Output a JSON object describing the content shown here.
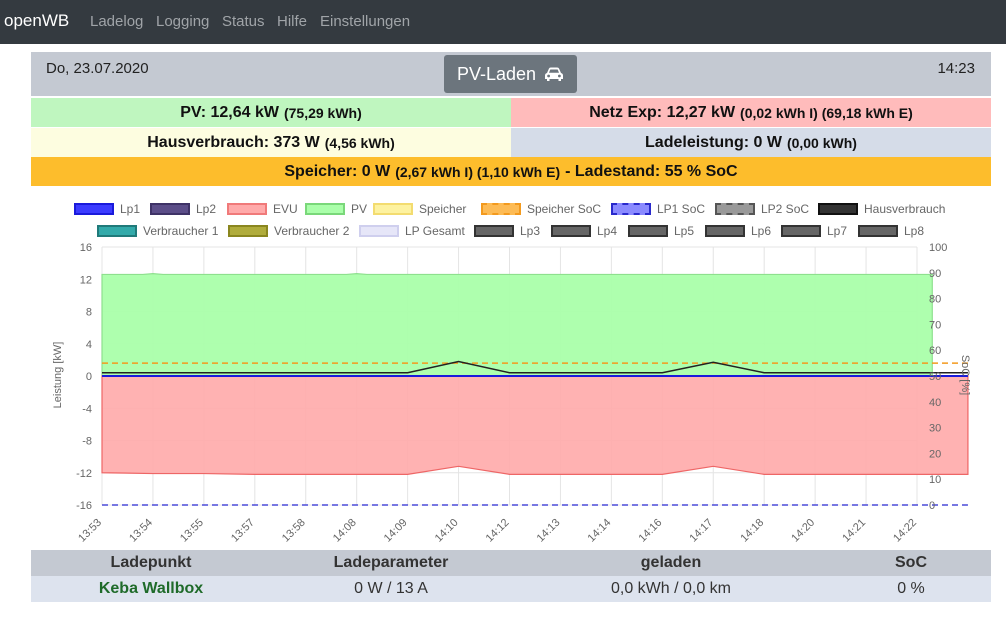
{
  "nav": {
    "brand": "openWB",
    "items": [
      "Ladelog",
      "Logging",
      "Status",
      "Hilfe",
      "Einstellungen"
    ]
  },
  "header": {
    "date": "Do, 23.07.2020",
    "mode_label": "PV-Laden",
    "mode_icon": "car-icon",
    "time": "14:23"
  },
  "summary": {
    "pv_main": "PV: 12,64 kW",
    "pv_detail": "(75,29 kWh)",
    "netz_main": "Netz Exp: 12,27 kW",
    "netz_detail": "(0,02 kWh I) (69,18 kWh E)",
    "haus_main": "Hausverbrauch: 373 W",
    "haus_detail": "(4,56 kWh)",
    "lade_main": "Ladeleistung: 0 W",
    "lade_detail": "(0,00 kWh)",
    "speicher_main": "Speicher: 0 W",
    "speicher_detail": "(2,67 kWh I) (1,10 kWh E)",
    "speicher_tail": "- Ladestand: 55 % SoC"
  },
  "colors": {
    "navbar": "#343a40",
    "header": "#c4c9d2",
    "pv": "#bff6bf",
    "netz": "#ffbbbb",
    "haus": "#fdfde0",
    "lade": "#d5dce8",
    "speicher": "#fdbd2c",
    "ladepunkt_name": "#1f6b2a"
  },
  "chart_data": {
    "type": "area",
    "legend": [
      {
        "name": "Lp1",
        "color": "#3b3bff",
        "border": "#1a1adb",
        "dashed": false
      },
      {
        "name": "Lp2",
        "color": "#5b4d88",
        "border": "#3e3266",
        "dashed": false
      },
      {
        "name": "EVU",
        "color": "#ffaaaa",
        "border": "#f07a7a",
        "dashed": false
      },
      {
        "name": "PV",
        "color": "#aaffaa",
        "border": "#7ad87a",
        "dashed": false
      },
      {
        "name": "Speicher",
        "color": "#fdf2a0",
        "border": "#f3dc70",
        "dashed": false
      },
      {
        "name": "Speicher SoC",
        "color": "#fdbb55",
        "border": "#f39a1e",
        "dashed": true
      },
      {
        "name": "LP1 SoC",
        "color": "#8a8aff",
        "border": "#2a2acc",
        "dashed": true
      },
      {
        "name": "LP2 SoC",
        "color": "#999999",
        "border": "#555555",
        "dashed": true
      },
      {
        "name": "Hausverbrauch",
        "color": "#333333",
        "border": "#111111",
        "dashed": false
      },
      {
        "name": "Verbraucher 1",
        "color": "#33aaaa",
        "border": "#207a7a",
        "dashed": false
      },
      {
        "name": "Verbraucher 2",
        "color": "#b0ac3c",
        "border": "#8a861f",
        "dashed": false
      },
      {
        "name": "LP Gesamt",
        "color": "#e6e6f8",
        "border": "#cfcfee",
        "dashed": false
      },
      {
        "name": "Lp3",
        "color": "#666666",
        "border": "#333333",
        "dashed": false
      },
      {
        "name": "Lp4",
        "color": "#666666",
        "border": "#333333",
        "dashed": false
      },
      {
        "name": "Lp5",
        "color": "#666666",
        "border": "#333333",
        "dashed": false
      },
      {
        "name": "Lp6",
        "color": "#666666",
        "border": "#333333",
        "dashed": false
      },
      {
        "name": "Lp7",
        "color": "#666666",
        "border": "#333333",
        "dashed": false
      },
      {
        "name": "Lp8",
        "color": "#666666",
        "border": "#333333",
        "dashed": false
      }
    ],
    "x_ticks": [
      "13:53",
      "13:54",
      "13:55",
      "13:57",
      "13:58",
      "14:08",
      "14:09",
      "14:10",
      "14:12",
      "14:13",
      "14:14",
      "14:16",
      "14:17",
      "14:18",
      "14:20",
      "14:21",
      "14:22"
    ],
    "y_left": {
      "label": "Leistung [kW]",
      "ticks": [
        16,
        12,
        8,
        4,
        0,
        -4,
        -8,
        -12,
        -16
      ],
      "range": [
        -16,
        16
      ]
    },
    "y_right": {
      "label": "SoC [%]",
      "ticks": [
        100,
        90,
        80,
        70,
        60,
        50,
        40,
        30,
        20,
        10,
        0
      ],
      "range": [
        0,
        100
      ]
    },
    "series": [
      {
        "name": "PV",
        "x_index": [
          0,
          0.8,
          1,
          1.2,
          2,
          3,
          4,
          4.8,
          5,
          5.2,
          6,
          7,
          8,
          9,
          10,
          11,
          12,
          13,
          14,
          15,
          15.3,
          15.5,
          15.7,
          16,
          16.3
        ],
        "values": [
          12.6,
          12.6,
          12.7,
          12.6,
          12.6,
          12.6,
          12.6,
          12.6,
          12.7,
          12.6,
          12.6,
          12.6,
          12.6,
          12.6,
          12.6,
          12.6,
          12.6,
          12.6,
          12.6,
          12.6,
          12.6,
          12.6,
          12.6,
          12.6,
          12.6
        ]
      },
      {
        "name": "EVU",
        "values": [
          -12.0,
          -12.1,
          -12.1,
          -12.2,
          -12.2,
          -12.2,
          -12.2,
          -11.2,
          -12.2,
          -12.2,
          -12.2,
          -12.2,
          -11.2,
          -12.2,
          -12.2,
          -12.2,
          -12.2,
          -12.2
        ]
      },
      {
        "name": "Hausverbrauch",
        "values": [
          0.4,
          0.4,
          0.4,
          0.4,
          0.4,
          0.4,
          0.4,
          1.8,
          0.4,
          0.4,
          0.4,
          0.4,
          1.7,
          0.4,
          0.4,
          0.4,
          0.4,
          0.4
        ]
      },
      {
        "name": "Lp1",
        "values": [
          0,
          0,
          0,
          0,
          0,
          0,
          0,
          0,
          0,
          0,
          0,
          0,
          0,
          0,
          0,
          0,
          0,
          0
        ]
      },
      {
        "name": "Speicher SoC",
        "axis": "right",
        "values": [
          55,
          55,
          55,
          55,
          55,
          55,
          55,
          55,
          55,
          55,
          55,
          55,
          55,
          55,
          55,
          55,
          55,
          55
        ]
      },
      {
        "name": "LP1 SoC",
        "axis": "right",
        "values": [
          0,
          0,
          0,
          0,
          0,
          0,
          0,
          0,
          0,
          0,
          0,
          0,
          0,
          0,
          0,
          0,
          0,
          0
        ]
      }
    ]
  },
  "table": {
    "headers": [
      "Ladepunkt",
      "Ladeparameter",
      "geladen",
      "SoC"
    ],
    "rows": [
      {
        "name": "Keba Wallbox",
        "param": "0 W / 13 A",
        "geladen": "0,0 kWh / 0,0 km",
        "soc": "0 %"
      }
    ]
  }
}
